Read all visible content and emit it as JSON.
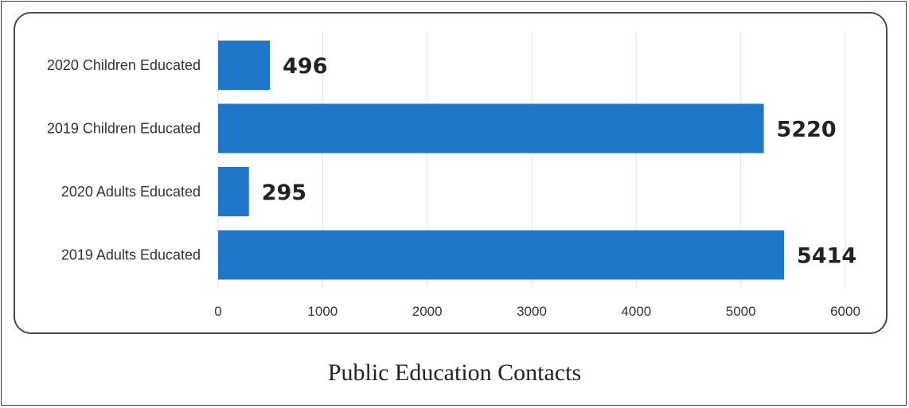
{
  "caption": "Public Education Contacts",
  "chart_data": {
    "type": "bar",
    "orientation": "horizontal",
    "title": "",
    "xlabel": "",
    "ylabel": "",
    "categories": [
      "2020 Children Educated",
      "2019 Children Educated",
      "2020 Adults Educated",
      "2019 Adults Educated"
    ],
    "values": [
      496,
      5220,
      295,
      5414
    ],
    "xlim": [
      0,
      6000
    ],
    "xticks": [
      0,
      1000,
      2000,
      3000,
      4000,
      5000,
      6000
    ],
    "grid": true,
    "bar_color": "#1f77c9",
    "legend": null
  }
}
